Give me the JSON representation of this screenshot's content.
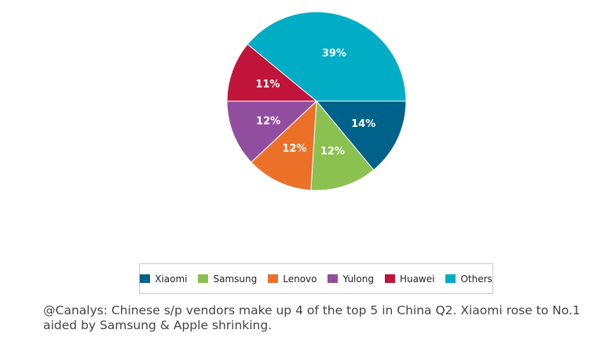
{
  "chart_data": {
    "type": "pie",
    "categories": [
      "Xiaomi",
      "Samsung",
      "Lenovo",
      "Yulong",
      "Huawei",
      "Others"
    ],
    "values": [
      14,
      12,
      12,
      12,
      11,
      39
    ],
    "labels": [
      "14%",
      "12%",
      "12%",
      "12%",
      "11%",
      "39%"
    ],
    "colors": [
      "#00628b",
      "#8bc150",
      "#ec7128",
      "#924e9e",
      "#c1143a",
      "#00adc5"
    ],
    "start_angle_deg": 90,
    "direction": "clockwise",
    "legend_position": "bottom"
  },
  "caption": "@Canalys: Chinese s/p vendors make up 4 of the top 5 in China Q2. Xiaomi rose to No.1 aided by Samsung & Apple shrinking."
}
